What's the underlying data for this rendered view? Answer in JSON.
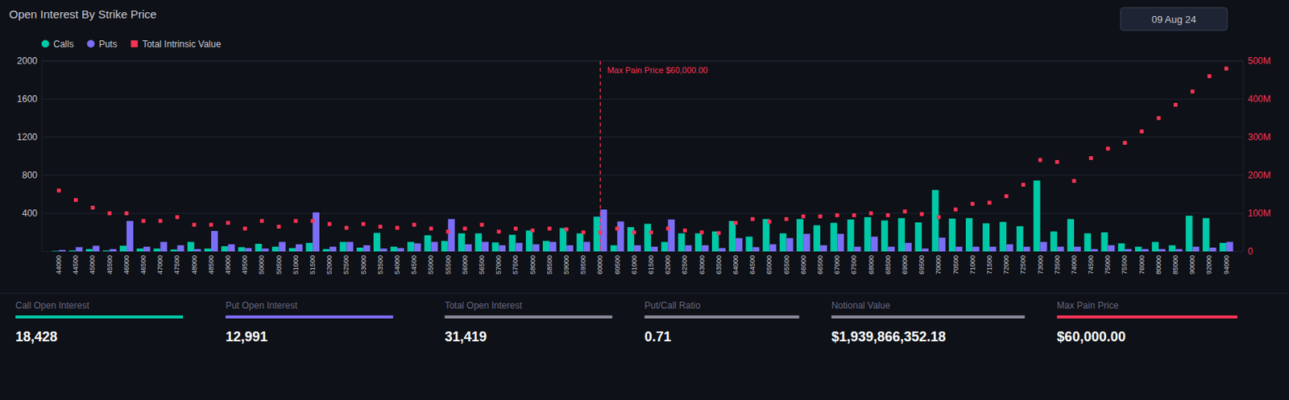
{
  "chart_data": {
    "type": "bar",
    "title": "Open Interest By Strike Price",
    "date_label": "09 Aug 24",
    "categories": [
      "44000",
      "44500",
      "45000",
      "45500",
      "46000",
      "46500",
      "47000",
      "47500",
      "48000",
      "48500",
      "49000",
      "49500",
      "50000",
      "50500",
      "51000",
      "51500",
      "52000",
      "52500",
      "53000",
      "53500",
      "54000",
      "54500",
      "55000",
      "55500",
      "56000",
      "56500",
      "57000",
      "57500",
      "58000",
      "58500",
      "59000",
      "59500",
      "60000",
      "60500",
      "61000",
      "61500",
      "62000",
      "62500",
      "63000",
      "63500",
      "64000",
      "64500",
      "65000",
      "65500",
      "66000",
      "66500",
      "67000",
      "67500",
      "68000",
      "68500",
      "69000",
      "69500",
      "70000",
      "70500",
      "71000",
      "71500",
      "72000",
      "72500",
      "73000",
      "73500",
      "74000",
      "74500",
      "75000",
      "75500",
      "76000",
      "80000",
      "85000",
      "90000",
      "92000",
      "94000"
    ],
    "series": [
      {
        "name": "Calls",
        "color": "#00c9a7",
        "values": [
          5,
          10,
          25,
          10,
          60,
          30,
          30,
          20,
          100,
          30,
          55,
          45,
          80,
          50,
          35,
          90,
          25,
          100,
          40,
          195,
          50,
          100,
          170,
          110,
          190,
          190,
          95,
          175,
          220,
          110,
          245,
          190,
          365,
          65,
          255,
          290,
          100,
          190,
          190,
          210,
          320,
          155,
          340,
          190,
          340,
          275,
          300,
          335,
          360,
          325,
          350,
          305,
          645,
          345,
          350,
          295,
          310,
          265,
          745,
          210,
          340,
          190,
          200,
          85,
          50,
          100,
          65,
          375,
          350,
          90
        ]
      },
      {
        "name": "Puts",
        "color": "#7b6ef6",
        "values": [
          15,
          45,
          60,
          25,
          320,
          50,
          100,
          65,
          25,
          215,
          75,
          35,
          30,
          100,
          75,
          410,
          50,
          100,
          65,
          30,
          35,
          85,
          100,
          340,
          75,
          100,
          65,
          90,
          75,
          100,
          65,
          100,
          440,
          315,
          65,
          50,
          335,
          65,
          65,
          35,
          140,
          45,
          75,
          140,
          185,
          65,
          185,
          50,
          155,
          50,
          90,
          30,
          145,
          50,
          50,
          50,
          75,
          50,
          100,
          50,
          50,
          25,
          65,
          25,
          25,
          25,
          25,
          50,
          40,
          100
        ]
      },
      {
        "name": "Total Intrinsic Value",
        "color": "#ff3355",
        "type": "scatter",
        "marker": "square",
        "axis": "y2",
        "values": [
          160,
          135,
          115,
          100,
          100,
          80,
          80,
          90,
          70,
          70,
          75,
          60,
          80,
          65,
          80,
          80,
          72,
          62,
          72,
          65,
          62,
          70,
          60,
          52,
          60,
          70,
          52,
          60,
          55,
          60,
          58,
          50,
          50,
          60,
          50,
          50,
          60,
          55,
          50,
          48,
          75,
          85,
          78,
          85,
          92,
          92,
          95,
          95,
          100,
          95,
          105,
          98,
          90,
          110,
          125,
          128,
          145,
          175,
          240,
          235,
          185,
          245,
          270,
          285,
          315,
          350,
          385,
          420,
          460,
          480
        ]
      }
    ],
    "ylim": [
      0,
      2000
    ],
    "yticks": [
      400,
      800,
      1200,
      1600,
      2000
    ],
    "y2lim": [
      0,
      500
    ],
    "y2ticks": [
      0,
      {
        "value": 100,
        "label": "100M"
      },
      {
        "value": 200,
        "label": "200M"
      },
      {
        "value": 300,
        "label": "300M"
      },
      {
        "value": 400,
        "label": "400M"
      },
      {
        "value": 500,
        "label": "500M"
      }
    ],
    "grid": true,
    "legend": "upper left",
    "annotations": [
      {
        "text": "Max Pain Price $60,000.00",
        "x": 60000,
        "color": "#ff3355"
      }
    ],
    "stats": [
      {
        "label": "Call Open Interest",
        "value": 18428,
        "value_label": "18,428",
        "color": "#00c9a7"
      },
      {
        "label": "Put Open Interest",
        "value": 12991,
        "value_label": "12,991",
        "color": "#7b6ef6"
      },
      {
        "label": "Total Open Interest",
        "value": 31419,
        "value_label": "31,419",
        "color": "#888899"
      },
      {
        "label": "Put/Call Ratio",
        "value": 0.71,
        "value_label": "0.71",
        "color": "#888899"
      },
      {
        "label": "Notional Value",
        "value": 1939866352.18,
        "value_label": "$1,939,866,352.18",
        "color": "#888899"
      },
      {
        "label": "Max Pain Price",
        "value": 60000,
        "value_label": "$60,000.00",
        "color": "#ff3355"
      }
    ]
  }
}
